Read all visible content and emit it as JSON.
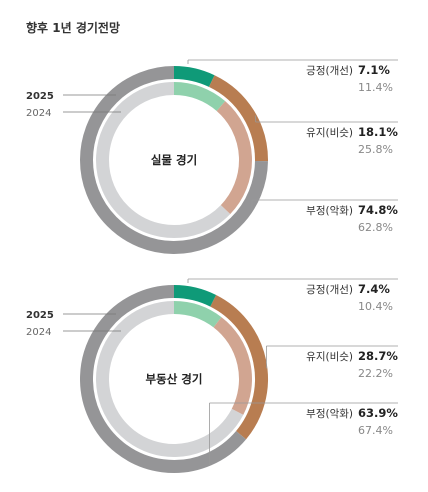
{
  "title": "향후 1년 경기전망",
  "colors": {
    "positive_2025": "#0f9a78",
    "positive_2024": "#8fd1ac",
    "neutral_2025": "#b87d51",
    "neutral_2024": "#d1a591",
    "negative_2025": "#959597",
    "negative_2024": "#d3d4d6"
  },
  "chart_data": [
    {
      "type": "pie",
      "center_label": "실물 경기",
      "year_outer": "2025",
      "year_inner": "2024",
      "categories": [
        "긍정(개선)",
        "유지(비슷)",
        "부정(악화)"
      ],
      "series": [
        {
          "name": "2025",
          "values": [
            7.1,
            18.1,
            74.8
          ]
        },
        {
          "name": "2024",
          "values": [
            11.4,
            25.8,
            62.8
          ]
        }
      ]
    },
    {
      "type": "pie",
      "center_label": "부동산 경기",
      "year_outer": "2025",
      "year_inner": "2024",
      "categories": [
        "긍정(개선)",
        "유지(비슷)",
        "부정(악화)"
      ],
      "series": [
        {
          "name": "2025",
          "values": [
            7.4,
            28.7,
            63.9
          ]
        },
        {
          "name": "2024",
          "values": [
            10.4,
            22.2,
            67.4
          ]
        }
      ]
    }
  ]
}
